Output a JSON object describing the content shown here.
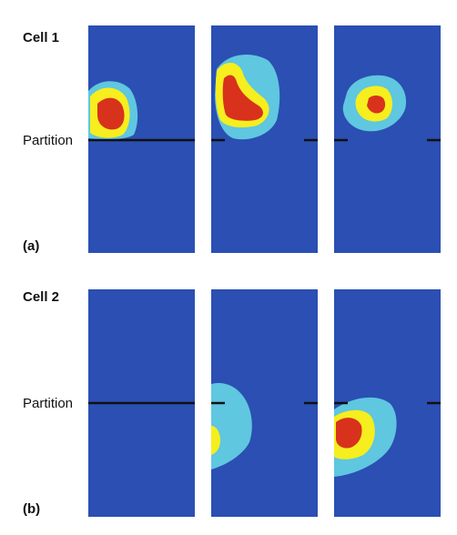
{
  "colors": {
    "field_blue": "#2b4fb3",
    "field_blue_dark": "#244599",
    "low": "#5fc7df",
    "mid": "#f6ee1e",
    "high": "#d8321c",
    "partition_line": "#111111"
  },
  "cell1": {
    "title": "Cell 1",
    "partition_label": "Partition",
    "panel_label": "(a)",
    "panels": [
      {
        "name": "cell1-panel-1",
        "partition_style": "solid"
      },
      {
        "name": "cell1-panel-2",
        "partition_style": "gapped"
      },
      {
        "name": "cell1-panel-3",
        "partition_style": "gapped"
      }
    ]
  },
  "cell2": {
    "title": "Cell 2",
    "partition_label": "Partition",
    "panel_label": "(b)",
    "panels": [
      {
        "name": "cell2-panel-1",
        "partition_style": "solid"
      },
      {
        "name": "cell2-panel-2",
        "partition_style": "gapped"
      },
      {
        "name": "cell2-panel-3",
        "partition_style": "gapped"
      }
    ]
  }
}
